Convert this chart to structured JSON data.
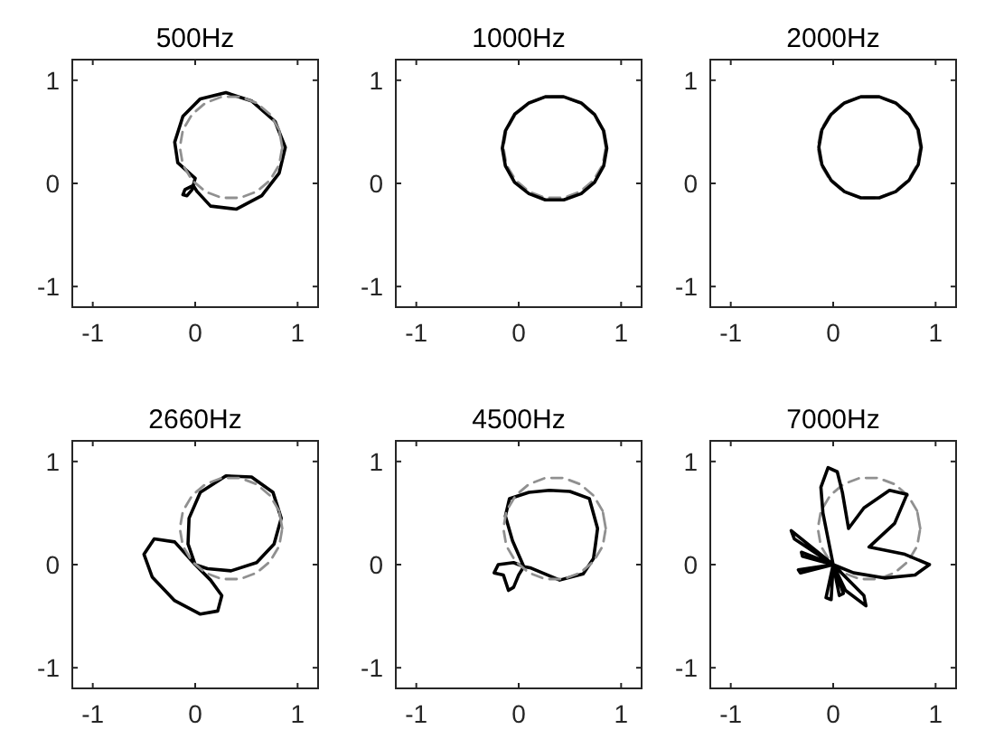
{
  "chart_data": [
    {
      "type": "line",
      "title": "500Hz",
      "xlim": [
        -1.2,
        1.2
      ],
      "ylim": [
        -1.2,
        1.2
      ],
      "xticks": [
        -1,
        0,
        1
      ],
      "yticks": [
        -1,
        0,
        1
      ],
      "series": [
        {
          "color": "#000000",
          "x": [
            0,
            -0.17,
            -0.2,
            -0.12,
            0.05,
            0.3,
            0.55,
            0.78,
            0.88,
            0.82,
            0.65,
            0.4,
            0.15,
            0.02,
            -0.02,
            -0.1,
            -0.12,
            -0.08,
            -0.03,
            0,
            -0.17
          ],
          "values": [
            0.05,
            0.2,
            0.4,
            0.65,
            0.82,
            0.88,
            0.8,
            0.6,
            0.35,
            0.1,
            -0.12,
            -0.25,
            -0.22,
            -0.08,
            -0.02,
            -0.06,
            -0.11,
            -0.12,
            -0.06,
            0.05,
            0.2
          ]
        },
        {
          "color": "#909090",
          "line_style": "dashed",
          "x": [
            0.85,
            0.82,
            0.73,
            0.6,
            0.44,
            0.26,
            0.1,
            -0.03,
            -0.12,
            -0.15,
            -0.12,
            -0.03,
            0.1,
            0.26,
            0.44,
            0.6,
            0.73,
            0.82,
            0.85,
            0.82
          ],
          "values": [
            0.35,
            0.52,
            0.67,
            0.78,
            0.84,
            0.84,
            0.78,
            0.67,
            0.52,
            0.35,
            0.18,
            0.03,
            -0.08,
            -0.14,
            -0.14,
            -0.08,
            0.03,
            0.18,
            0.35,
            0.52
          ]
        }
      ]
    },
    {
      "type": "line",
      "title": "1000Hz",
      "xlim": [
        -1.2,
        1.2
      ],
      "ylim": [
        -1.2,
        1.2
      ],
      "xticks": [
        -1,
        0,
        1
      ],
      "yticks": [
        -1,
        0,
        1
      ],
      "series": [
        {
          "color": "#909090",
          "line_style": "dashed",
          "x": [
            0.85,
            0.82,
            0.73,
            0.6,
            0.44,
            0.26,
            0.1,
            -0.03,
            -0.12,
            -0.15,
            -0.12,
            -0.03,
            0.1,
            0.26,
            0.44,
            0.6,
            0.73,
            0.82,
            0.85,
            0.82
          ],
          "values": [
            0.35,
            0.52,
            0.67,
            0.78,
            0.84,
            0.84,
            0.78,
            0.67,
            0.52,
            0.35,
            0.18,
            0.03,
            -0.08,
            -0.14,
            -0.14,
            -0.08,
            0.03,
            0.18,
            0.35,
            0.52
          ]
        },
        {
          "color": "#000000",
          "x": [
            0.86,
            0.83,
            0.74,
            0.61,
            0.44,
            0.26,
            0.1,
            -0.04,
            -0.13,
            -0.16,
            -0.13,
            -0.04,
            0.1,
            0.26,
            0.44,
            0.61,
            0.74,
            0.83,
            0.86,
            0.83
          ],
          "values": [
            0.34,
            0.51,
            0.67,
            0.78,
            0.84,
            0.84,
            0.78,
            0.67,
            0.51,
            0.34,
            0.17,
            0.01,
            -0.1,
            -0.16,
            -0.16,
            -0.1,
            0.01,
            0.17,
            0.34,
            0.51
          ]
        }
      ]
    },
    {
      "type": "line",
      "title": "2000Hz",
      "xlim": [
        -1.2,
        1.2
      ],
      "ylim": [
        -1.2,
        1.2
      ],
      "xticks": [
        -1,
        0,
        1
      ],
      "yticks": [
        -1,
        0,
        1
      ],
      "series": [
        {
          "color": "#909090",
          "line_style": "dashed",
          "x": [
            0.85,
            0.82,
            0.73,
            0.6,
            0.44,
            0.26,
            0.1,
            -0.03,
            -0.12,
            -0.15,
            -0.12,
            -0.03,
            0.1,
            0.26,
            0.44,
            0.6,
            0.73,
            0.82,
            0.85,
            0.82
          ],
          "values": [
            0.35,
            0.52,
            0.67,
            0.78,
            0.84,
            0.84,
            0.78,
            0.67,
            0.52,
            0.35,
            0.18,
            0.03,
            -0.08,
            -0.14,
            -0.14,
            -0.08,
            0.03,
            0.18,
            0.35,
            0.52
          ]
        },
        {
          "color": "#000000",
          "x": [
            0.86,
            0.83,
            0.74,
            0.61,
            0.45,
            0.27,
            0.11,
            -0.02,
            -0.11,
            -0.14,
            -0.11,
            -0.02,
            0.11,
            0.27,
            0.45,
            0.61,
            0.74,
            0.83,
            0.86,
            0.83
          ],
          "values": [
            0.35,
            0.52,
            0.67,
            0.78,
            0.84,
            0.84,
            0.78,
            0.67,
            0.52,
            0.35,
            0.18,
            0.03,
            -0.08,
            -0.14,
            -0.14,
            -0.08,
            0.03,
            0.18,
            0.35,
            0.52
          ]
        }
      ]
    },
    {
      "type": "line",
      "title": "2660Hz",
      "xlim": [
        -1.2,
        1.2
      ],
      "ylim": [
        -1.2,
        1.2
      ],
      "xticks": [
        -1,
        0,
        1
      ],
      "yticks": [
        -1,
        0,
        1
      ],
      "series": [
        {
          "color": "#000000",
          "x": [
            0,
            -0.07,
            -0.06,
            0.05,
            0.3,
            0.55,
            0.76,
            0.84,
            0.77,
            0.6,
            0.35,
            0.12,
            0,
            0.15,
            0.26,
            0.22,
            0.05,
            -0.2,
            -0.42,
            -0.5,
            -0.4,
            -0.2,
            0,
            -0.07
          ],
          "values": [
            0,
            0.2,
            0.45,
            0.7,
            0.86,
            0.85,
            0.7,
            0.45,
            0.2,
            0.02,
            -0.06,
            -0.04,
            0,
            -0.15,
            -0.3,
            -0.45,
            -0.48,
            -0.35,
            -0.12,
            0.1,
            0.25,
            0.22,
            0,
            0.2
          ]
        },
        {
          "color": "#909090",
          "line_style": "dashed",
          "x": [
            0.85,
            0.82,
            0.73,
            0.6,
            0.44,
            0.26,
            0.1,
            -0.03,
            -0.12,
            -0.15,
            -0.12,
            -0.03,
            0.1,
            0.26,
            0.44,
            0.6,
            0.73,
            0.82,
            0.85,
            0.82
          ],
          "values": [
            0.35,
            0.52,
            0.67,
            0.78,
            0.84,
            0.84,
            0.78,
            0.67,
            0.52,
            0.35,
            0.18,
            0.03,
            -0.08,
            -0.14,
            -0.14,
            -0.08,
            0.03,
            0.18,
            0.35,
            0.52
          ]
        }
      ]
    },
    {
      "type": "line",
      "title": "4500Hz",
      "xlim": [
        -1.2,
        1.2
      ],
      "ylim": [
        -1.2,
        1.2
      ],
      "xticks": [
        -1,
        0,
        1
      ],
      "yticks": [
        -1,
        0,
        1
      ],
      "series": [
        {
          "color": "#000000",
          "x": [
            0.05,
            -0.06,
            -0.13,
            -0.09,
            0.1,
            0.3,
            0.5,
            0.69,
            0.77,
            0.75,
            0.73,
            0.63,
            0.4,
            0.11,
            0.05,
            -0.05,
            -0.2,
            -0.24,
            -0.15,
            -0.1,
            -0.05,
            0,
            0.05,
            -0.06
          ],
          "values": [
            -0.02,
            0.23,
            0.47,
            0.64,
            0.7,
            0.72,
            0.71,
            0.64,
            0.35,
            0.2,
            0.06,
            -0.09,
            -0.15,
            -0.03,
            -0.02,
            0.02,
            0,
            -0.08,
            -0.1,
            -0.25,
            -0.22,
            -0.1,
            -0.02,
            0.23
          ]
        },
        {
          "color": "#909090",
          "line_style": "dashed",
          "x": [
            0.85,
            0.82,
            0.73,
            0.6,
            0.44,
            0.26,
            0.1,
            -0.03,
            -0.12,
            -0.15,
            -0.12,
            -0.03,
            0.1,
            0.26,
            0.44,
            0.6,
            0.73,
            0.82,
            0.85,
            0.82
          ],
          "values": [
            0.35,
            0.52,
            0.67,
            0.78,
            0.84,
            0.84,
            0.78,
            0.67,
            0.52,
            0.35,
            0.18,
            0.03,
            -0.08,
            -0.14,
            -0.14,
            -0.08,
            0.03,
            0.18,
            0.35,
            0.52
          ]
        }
      ]
    },
    {
      "type": "line",
      "title": "7000Hz",
      "xlim": [
        -1.2,
        1.2
      ],
      "ylim": [
        -1.2,
        1.2
      ],
      "xticks": [
        -1,
        0,
        1
      ],
      "yticks": [
        -1,
        0,
        1
      ],
      "series": [
        {
          "color": "#909090",
          "line_style": "dashed",
          "x": [
            0.85,
            0.82,
            0.73,
            0.6,
            0.44,
            0.26,
            0.1,
            -0.03,
            -0.12,
            -0.15,
            -0.12,
            -0.03,
            0.1,
            0.26,
            0.44,
            0.6,
            0.73,
            0.82,
            0.85,
            0.82
          ],
          "values": [
            0.35,
            0.52,
            0.67,
            0.78,
            0.84,
            0.84,
            0.78,
            0.67,
            0.52,
            0.35,
            0.18,
            0.03,
            -0.08,
            -0.14,
            -0.14,
            -0.08,
            0.03,
            0.18,
            0.35,
            0.52
          ]
        },
        {
          "color": "#000000",
          "x": [
            0,
            -0.1,
            -0.12,
            -0.05,
            0.04,
            0.09,
            0.15,
            0.3,
            0.55,
            0.72,
            0.6,
            0.35,
            0.7,
            0.94,
            0.8,
            0.5,
            0.2,
            0,
            0.12,
            0.32,
            0.3,
            0,
            0.1,
            0.06,
            0,
            -0.02,
            -0.07,
            0,
            -0.32,
            -0.34,
            0,
            -0.31,
            -0.3,
            0,
            -0.41,
            -0.38,
            0,
            -0.1
          ],
          "values": [
            0,
            0.5,
            0.75,
            0.94,
            0.9,
            0.7,
            0.35,
            0.55,
            0.72,
            0.68,
            0.4,
            0.17,
            0.1,
            0,
            -0.1,
            -0.13,
            -0.08,
            0,
            -0.25,
            -0.4,
            -0.3,
            0,
            -0.28,
            -0.3,
            0,
            -0.34,
            -0.32,
            0,
            -0.08,
            -0.05,
            0,
            0.12,
            0.08,
            0,
            0.33,
            0.25,
            0,
            0.5
          ]
        }
      ]
    }
  ]
}
